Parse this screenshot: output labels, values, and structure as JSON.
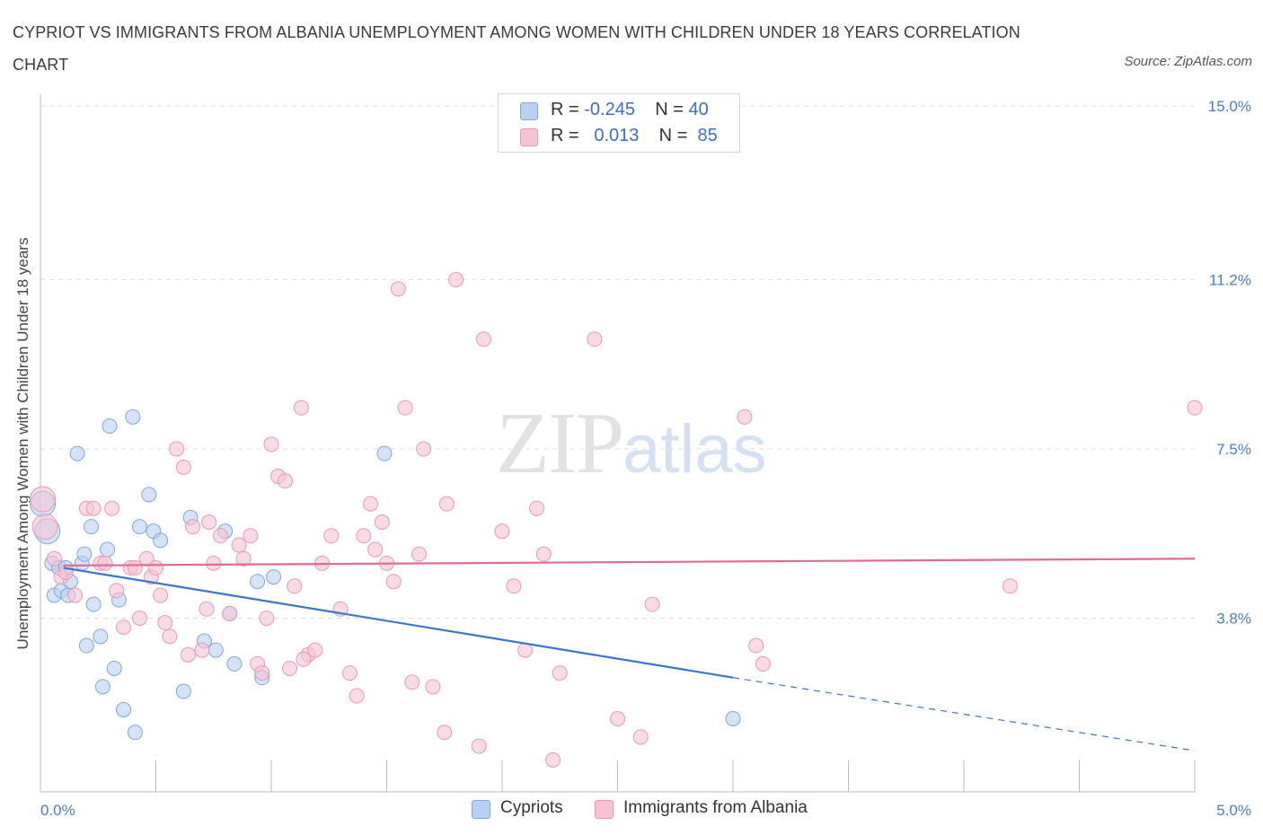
{
  "header": {
    "title": "CYPRIOT VS IMMIGRANTS FROM ALBANIA UNEMPLOYMENT AMONG WOMEN WITH CHILDREN UNDER 18 YEARS CORRELATION CHART",
    "source": "Source: ZipAtlas.com"
  },
  "watermark": {
    "zip": "ZIP",
    "atlas": "atlas"
  },
  "legend": {
    "rows": [
      {
        "r_label": "R =",
        "r_value": "-0.245",
        "n_label": "N =",
        "n_value": "40"
      },
      {
        "r_label": "R =",
        "r_value": "0.013",
        "n_label": "N =",
        "n_value": "85"
      }
    ]
  },
  "bottom_legend": {
    "items": [
      "Cypriots",
      "Immigrants from Albania"
    ]
  },
  "colors": {
    "cypriots_fill": "#b8d0f2",
    "cypriots_stroke": "#7ea6de",
    "cypriots_line": "#3a74cc",
    "albania_fill": "#f7c3d3",
    "albania_stroke": "#eb97b3",
    "albania_line": "#e06b95",
    "grid": "#dddddd",
    "axis_label": "#4a7cc9"
  },
  "chart_data": {
    "type": "scatter",
    "title": "CYPRIOT VS IMMIGRANTS FROM ALBANIA UNEMPLOYMENT AMONG WOMEN WITH CHILDREN UNDER 18 YEARS CORRELATION CHART",
    "xlabel": "",
    "ylabel": "Unemployment Among Women with Children Under 18 years",
    "xlim": [
      0,
      5
    ],
    "ylim": [
      0,
      15
    ],
    "x_tick_labels": [
      "0.0%",
      "5.0%"
    ],
    "y_ticks": [
      3.8,
      7.5,
      11.2,
      15.0
    ],
    "y_tick_labels": [
      "3.8%",
      "7.5%",
      "11.2%",
      "15.0%"
    ],
    "grid": true,
    "legend_position": "top-center",
    "series": [
      {
        "name": "Cypriots",
        "R": -0.245,
        "N": 40,
        "trend": {
          "x0": 0.1,
          "y0": 4.9,
          "x1": 3.0,
          "y1": 2.5,
          "dash_to_x": 5.0,
          "dash_to_y": 0.9
        },
        "points": [
          [
            0.01,
            6.3
          ],
          [
            0.03,
            5.7
          ],
          [
            0.05,
            5.0
          ],
          [
            0.06,
            4.3
          ],
          [
            0.08,
            4.9
          ],
          [
            0.09,
            4.4
          ],
          [
            0.11,
            4.9
          ],
          [
            0.12,
            4.3
          ],
          [
            0.13,
            4.6
          ],
          [
            0.16,
            7.4
          ],
          [
            0.18,
            5.0
          ],
          [
            0.19,
            5.2
          ],
          [
            0.2,
            3.2
          ],
          [
            0.22,
            5.8
          ],
          [
            0.23,
            4.1
          ],
          [
            0.26,
            3.4
          ],
          [
            0.27,
            2.3
          ],
          [
            0.29,
            5.3
          ],
          [
            0.3,
            8.0
          ],
          [
            0.32,
            2.7
          ],
          [
            0.34,
            4.2
          ],
          [
            0.36,
            1.8
          ],
          [
            0.4,
            8.2
          ],
          [
            0.41,
            1.3
          ],
          [
            0.43,
            5.8
          ],
          [
            0.47,
            6.5
          ],
          [
            0.49,
            5.7
          ],
          [
            0.52,
            5.5
          ],
          [
            0.62,
            2.2
          ],
          [
            0.65,
            6.0
          ],
          [
            0.71,
            3.3
          ],
          [
            0.76,
            3.1
          ],
          [
            0.8,
            5.7
          ],
          [
            0.82,
            3.9
          ],
          [
            0.84,
            2.8
          ],
          [
            0.94,
            4.6
          ],
          [
            0.96,
            2.5
          ],
          [
            1.01,
            4.7
          ],
          [
            1.49,
            7.4
          ],
          [
            3.0,
            1.6
          ]
        ]
      },
      {
        "name": "Immigrants from Albania",
        "R": 0.013,
        "N": 85,
        "trend": {
          "x0": 0.1,
          "y0": 4.95,
          "x1": 5.0,
          "y1": 5.1
        },
        "points": [
          [
            0.01,
            6.4
          ],
          [
            0.02,
            5.8
          ],
          [
            0.06,
            5.1
          ],
          [
            0.09,
            4.7
          ],
          [
            0.11,
            4.8
          ],
          [
            0.15,
            4.3
          ],
          [
            0.2,
            6.2
          ],
          [
            0.23,
            6.2
          ],
          [
            0.26,
            5.0
          ],
          [
            0.28,
            5.0
          ],
          [
            0.31,
            6.2
          ],
          [
            0.33,
            4.4
          ],
          [
            0.36,
            3.6
          ],
          [
            0.39,
            4.9
          ],
          [
            0.41,
            4.9
          ],
          [
            0.43,
            3.8
          ],
          [
            0.46,
            5.1
          ],
          [
            0.48,
            4.7
          ],
          [
            0.5,
            4.9
          ],
          [
            0.52,
            4.3
          ],
          [
            0.54,
            3.7
          ],
          [
            0.56,
            3.4
          ],
          [
            0.59,
            7.5
          ],
          [
            0.62,
            7.1
          ],
          [
            0.64,
            3.0
          ],
          [
            0.66,
            5.8
          ],
          [
            0.7,
            3.1
          ],
          [
            0.72,
            4.0
          ],
          [
            0.73,
            5.9
          ],
          [
            0.75,
            5.0
          ],
          [
            0.78,
            5.6
          ],
          [
            0.82,
            3.9
          ],
          [
            0.86,
            5.4
          ],
          [
            0.88,
            5.1
          ],
          [
            0.91,
            5.6
          ],
          [
            0.94,
            2.8
          ],
          [
            0.96,
            2.6
          ],
          [
            0.98,
            3.8
          ],
          [
            1.0,
            7.6
          ],
          [
            1.03,
            6.9
          ],
          [
            1.06,
            6.8
          ],
          [
            1.08,
            2.7
          ],
          [
            1.1,
            4.5
          ],
          [
            1.13,
            8.4
          ],
          [
            1.16,
            3.0
          ],
          [
            1.19,
            3.1
          ],
          [
            1.22,
            5.0
          ],
          [
            1.26,
            5.6
          ],
          [
            1.3,
            4.0
          ],
          [
            1.34,
            2.6
          ],
          [
            1.37,
            2.1
          ],
          [
            1.4,
            5.6
          ],
          [
            1.43,
            6.3
          ],
          [
            1.45,
            5.3
          ],
          [
            1.48,
            5.9
          ],
          [
            1.5,
            5.0
          ],
          [
            1.53,
            4.6
          ],
          [
            1.55,
            11.0
          ],
          [
            1.58,
            8.4
          ],
          [
            1.61,
            2.4
          ],
          [
            1.64,
            5.2
          ],
          [
            1.66,
            7.5
          ],
          [
            1.7,
            2.3
          ],
          [
            1.75,
            1.3
          ],
          [
            1.76,
            6.3
          ],
          [
            1.8,
            11.2
          ],
          [
            1.9,
            1.0
          ],
          [
            1.92,
            9.9
          ],
          [
            2.0,
            5.7
          ],
          [
            2.05,
            4.5
          ],
          [
            2.1,
            3.1
          ],
          [
            2.15,
            6.2
          ],
          [
            2.18,
            5.2
          ],
          [
            2.22,
            0.7
          ],
          [
            2.25,
            2.6
          ],
          [
            2.4,
            9.9
          ],
          [
            2.5,
            1.6
          ],
          [
            2.6,
            1.2
          ],
          [
            2.65,
            4.1
          ],
          [
            3.05,
            8.2
          ],
          [
            3.1,
            3.2
          ],
          [
            3.13,
            2.8
          ],
          [
            4.2,
            4.5
          ],
          [
            5.0,
            8.4
          ],
          [
            1.14,
            2.9
          ]
        ]
      }
    ]
  }
}
